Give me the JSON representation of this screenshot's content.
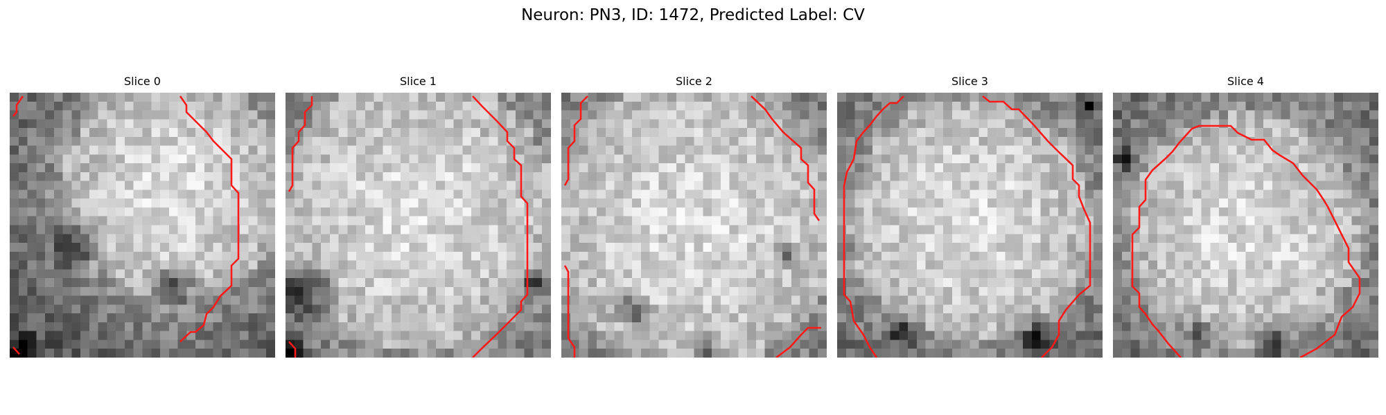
{
  "figure": {
    "title": "Neuron: PN3, ID: 1472, Predicted Label: CV",
    "contour_color": "#ff1a1a",
    "colormap": "grayscale",
    "grid_size": 30,
    "slices": [
      {
        "title": "Slice 0",
        "interior_center": [
          0.62,
          0.36
        ],
        "interior_radius": 0.42,
        "dark_regions": [
          [
            0.05,
            0.97,
            0.08
          ],
          [
            0.25,
            0.57,
            0.12
          ],
          [
            0.62,
            0.72,
            0.1
          ]
        ]
      },
      {
        "title": "Slice 1",
        "interior_center": [
          0.5,
          0.45
        ],
        "interior_radius": 0.52,
        "dark_regions": [
          [
            0.08,
            0.75,
            0.14
          ],
          [
            0.03,
            0.97,
            0.06
          ],
          [
            0.93,
            0.72,
            0.07
          ]
        ]
      },
      {
        "title": "Slice 2",
        "interior_center": [
          0.5,
          0.5
        ],
        "interior_radius": 0.55,
        "dark_regions": [
          [
            0.55,
            0.97,
            0.06
          ],
          [
            0.85,
            0.62,
            0.06
          ],
          [
            0.28,
            0.82,
            0.08
          ]
        ]
      },
      {
        "title": "Slice 3",
        "interior_center": [
          0.5,
          0.48
        ],
        "interior_radius": 0.46,
        "dark_regions": [
          [
            0.25,
            0.9,
            0.09
          ],
          [
            0.75,
            0.93,
            0.1
          ],
          [
            0.95,
            0.05,
            0.05
          ]
        ]
      },
      {
        "title": "Slice 4",
        "interior_center": [
          0.5,
          0.52
        ],
        "interior_radius": 0.44,
        "dark_regions": [
          [
            0.6,
            0.93,
            0.1
          ],
          [
            0.33,
            0.9,
            0.06
          ],
          [
            0.05,
            0.25,
            0.06
          ]
        ]
      }
    ]
  }
}
